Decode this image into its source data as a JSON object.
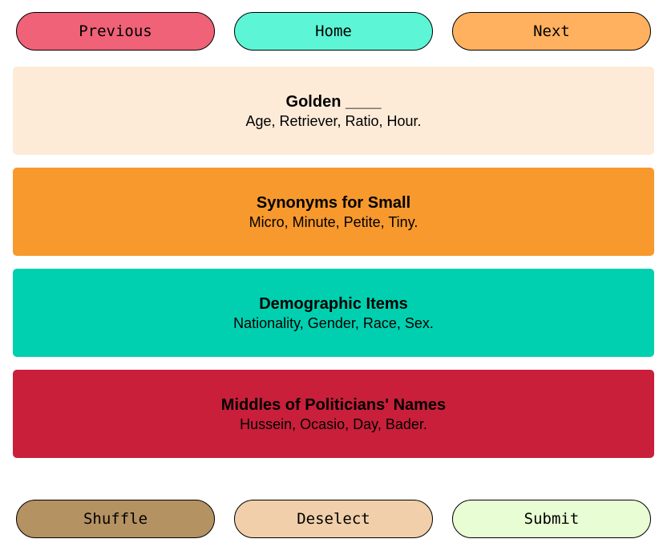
{
  "nav": {
    "previous": {
      "label": "Previous",
      "color": "#f06277"
    },
    "home": {
      "label": "Home",
      "color": "#5cf5d5"
    },
    "next": {
      "label": "Next",
      "color": "#ffb15f"
    }
  },
  "groups": [
    {
      "title": "Golden ____",
      "words": "Age, Retriever, Ratio, Hour.",
      "color": "#fdebd8"
    },
    {
      "title": "Synonyms for Small",
      "words": "Micro, Minute, Petite, Tiny.",
      "color": "#f7992d"
    },
    {
      "title": "Demographic Items",
      "words": "Nationality, Gender, Race, Sex.",
      "color": "#00d0b0"
    },
    {
      "title": "Middles of Politicians' Names",
      "words": "Hussein, Ocasio, Day, Bader.",
      "color": "#c91f3a"
    }
  ],
  "actions": {
    "shuffle": {
      "label": "Shuffle",
      "color": "#b49262"
    },
    "deselect": {
      "label": "Deselect",
      "color": "#f0cfaa"
    },
    "submit": {
      "label": "Submit",
      "color": "#e8fdd3"
    }
  }
}
